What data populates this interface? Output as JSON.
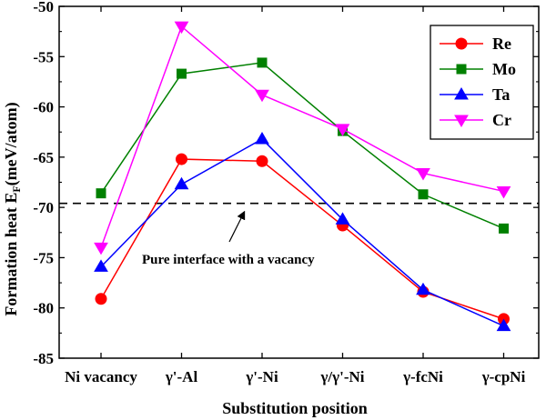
{
  "chart_data": {
    "type": "line",
    "categories": [
      "Ni vacancy",
      "γ'-Al",
      "γ'-Ni",
      "γ/γ'-Ni",
      "γ-fcNi",
      "γ-cpNi"
    ],
    "xlabel": "Substitution position",
    "ylabel": "Formation heat E",
    "ylabel_sub": "F",
    "ylabel_unit": "(meV/atom)",
    "ylim": [
      -85,
      -50
    ],
    "yticks": [
      -85,
      -80,
      -75,
      -70,
      -65,
      -60,
      -55,
      -50
    ],
    "ytick_labels": [
      "-85",
      "-80",
      "-75",
      "-70",
      "-65",
      "-60",
      "-55",
      "-50"
    ],
    "legend_position": "top-right",
    "series": [
      {
        "name": "Re",
        "color": "#ff0000",
        "marker": "circle",
        "values": [
          -79.1,
          -65.2,
          -65.4,
          -71.8,
          -78.4,
          -81.1
        ]
      },
      {
        "name": "Mo",
        "color": "#008000",
        "marker": "square",
        "values": [
          -68.6,
          -56.7,
          -55.6,
          -62.4,
          -68.7,
          -72.1
        ]
      },
      {
        "name": "Ta",
        "color": "#0000ff",
        "marker": "triangle-up",
        "values": [
          -75.9,
          -67.7,
          -63.2,
          -71.2,
          -78.2,
          -81.8
        ]
      },
      {
        "name": "Cr",
        "color": "#ff00ff",
        "marker": "triangle-down",
        "values": [
          -74.0,
          -52.0,
          -58.8,
          -62.2,
          -66.6,
          -68.4
        ]
      }
    ],
    "reference_line": {
      "value": -69.6,
      "style": "dashed",
      "color": "#000000"
    },
    "annotation": {
      "text": "Pure interface with a vacancy",
      "points_to": "reference line"
    }
  }
}
